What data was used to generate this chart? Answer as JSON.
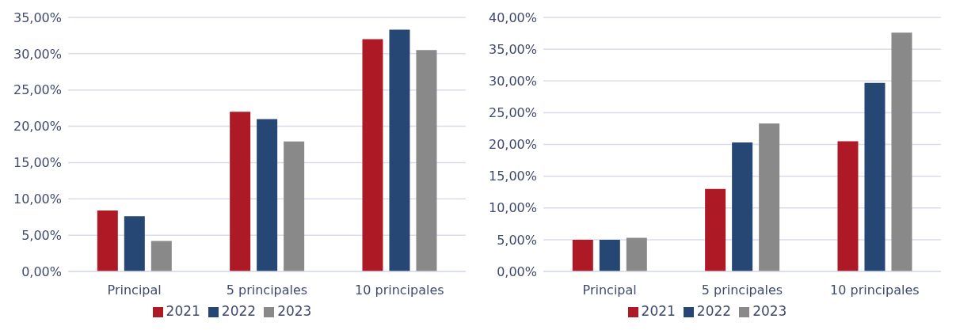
{
  "chart_data": [
    {
      "type": "bar",
      "categories": [
        "Principal",
        "5 principales",
        "10 principales"
      ],
      "series": [
        {
          "name": "2021",
          "color": "#ae1926",
          "values": [
            8.4,
            22.0,
            32.0
          ]
        },
        {
          "name": "2022",
          "color": "#264673",
          "values": [
            7.6,
            21.0,
            33.3
          ]
        },
        {
          "name": "2023",
          "color": "#898989",
          "values": [
            4.2,
            17.9,
            30.5
          ]
        }
      ],
      "ylim": [
        0,
        35
      ],
      "yticks": [
        {
          "value": 0,
          "label": "0,00%"
        },
        {
          "value": 5,
          "label": "5,00%"
        },
        {
          "value": 10,
          "label": "10,00%"
        },
        {
          "value": 15,
          "label": "15,00%"
        },
        {
          "value": 20,
          "label": "20,00%"
        },
        {
          "value": 25,
          "label": "25,00%"
        },
        {
          "value": 30,
          "label": "30,00%"
        },
        {
          "value": 35,
          "label": "35,00%"
        }
      ],
      "grid": "y",
      "legend": "bottom"
    },
    {
      "type": "bar",
      "categories": [
        "Principal",
        "5 principales",
        "10 principales"
      ],
      "series": [
        {
          "name": "2021",
          "color": "#ae1926",
          "values": [
            5.0,
            13.0,
            20.5
          ]
        },
        {
          "name": "2022",
          "color": "#264673",
          "values": [
            5.0,
            20.3,
            29.7
          ]
        },
        {
          "name": "2023",
          "color": "#898989",
          "values": [
            5.3,
            23.3,
            37.6
          ]
        }
      ],
      "ylim": [
        0,
        40
      ],
      "yticks": [
        {
          "value": 0,
          "label": "0,00%"
        },
        {
          "value": 5,
          "label": "5,00%"
        },
        {
          "value": 10,
          "label": "10,00%"
        },
        {
          "value": 15,
          "label": "15,00%"
        },
        {
          "value": 20,
          "label": "20,00%"
        },
        {
          "value": 25,
          "label": "25,00%"
        },
        {
          "value": 30,
          "label": "30,00%"
        },
        {
          "value": 35,
          "label": "35,00%"
        },
        {
          "value": 40,
          "label": "40,00%"
        }
      ],
      "grid": "y",
      "legend": "bottom"
    }
  ]
}
